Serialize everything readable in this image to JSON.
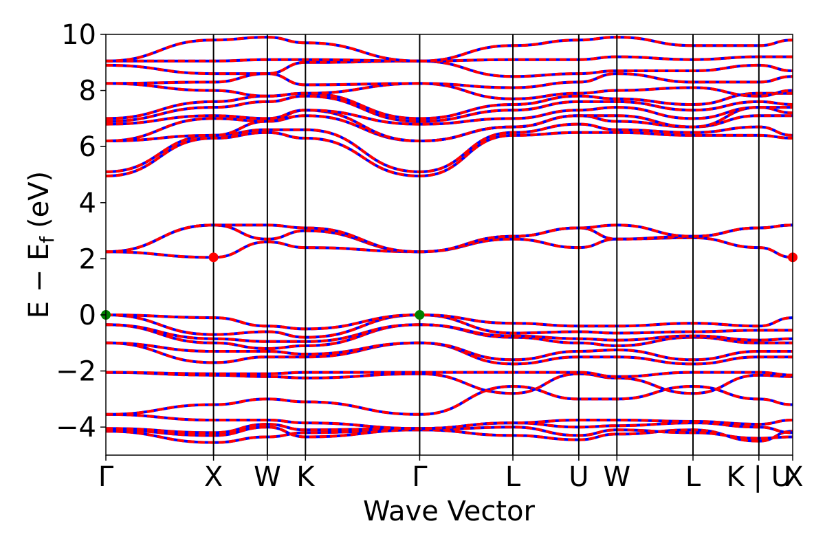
{
  "chart_data": {
    "type": "line",
    "title": "",
    "xlabel": "Wave Vector",
    "ylabel_parts": {
      "base": "E  −  E",
      "sub": "f",
      "unit": "(eV)"
    },
    "ylim": [
      -5,
      10
    ],
    "yticks": [
      -4,
      -2,
      0,
      2,
      4,
      6,
      8,
      10
    ],
    "ytick_labels": [
      "−4",
      "−2",
      "0",
      "2",
      "4",
      "6",
      "8",
      "10"
    ],
    "xlim": [
      0,
      6.38
    ],
    "kpath": [
      {
        "label": "Γ",
        "x": 0.0
      },
      {
        "label": "X",
        "x": 1.0
      },
      {
        "label": "W",
        "x": 1.5
      },
      {
        "label": "K",
        "x": 1.854
      },
      {
        "label": "Γ",
        "x": 2.915
      },
      {
        "label": "L",
        "x": 3.781
      },
      {
        "label": "U",
        "x": 4.393
      },
      {
        "label": "W",
        "x": 4.747
      },
      {
        "label": "L",
        "x": 5.454
      },
      {
        "label": "K | U",
        "x": 6.066
      },
      {
        "label": "X",
        "x": 6.42
      }
    ],
    "grid": false,
    "legend": "none",
    "series_style": {
      "spin_up": "#0000ff",
      "spin_down": "#ff0000",
      "dashed": true
    },
    "points": [
      {
        "role": "vbm",
        "x": 0.0,
        "y": 0.0,
        "color": "#008000"
      },
      {
        "role": "vbm",
        "x": 2.915,
        "y": 0.0,
        "color": "#008000"
      },
      {
        "role": "cbm",
        "x": 1.0,
        "y": 2.05,
        "color": "#ff0000"
      },
      {
        "role": "cbm",
        "x": 6.38,
        "y": 2.05,
        "color": "#ff0000"
      }
    ],
    "bands": [
      {
        "name": "",
        "y": [
          -4.15,
          -4.55,
          -4.35,
          -4.2,
          -4.1,
          -4.3,
          -4.45,
          -4.25,
          -4.1,
          -4.5,
          -4.15
        ]
      },
      {
        "name": "",
        "y": [
          -4.1,
          -4.3,
          -4.0,
          -4.35,
          -4.1,
          -4.0,
          -4.3,
          -4.1,
          -4.2,
          -4.4,
          -4.35
        ]
      },
      {
        "name": "",
        "y": [
          -4.05,
          -4.2,
          -3.9,
          -4.1,
          -4.05,
          -3.85,
          -4.0,
          -3.95,
          -3.85,
          -4.0,
          -4.2
        ]
      },
      {
        "name": "",
        "y": [
          -3.55,
          -3.75,
          -3.75,
          -3.85,
          -4.05,
          -3.85,
          -3.75,
          -3.75,
          -3.8,
          -3.9,
          -3.75
        ]
      },
      {
        "name": "",
        "y": [
          -3.55,
          -3.2,
          -3.0,
          -3.1,
          -3.55,
          -2.55,
          -3.0,
          -3.0,
          -2.55,
          -3.0,
          -3.2
        ]
      },
      {
        "name": "",
        "y": [
          -2.05,
          -2.15,
          -2.2,
          -2.25,
          -2.1,
          -2.8,
          -2.1,
          -2.25,
          -2.8,
          -2.15,
          -2.2
        ]
      },
      {
        "name": "",
        "y": [
          -2.05,
          -2.1,
          -2.1,
          -2.05,
          -2.05,
          -2.05,
          -2.05,
          -2.2,
          -2.05,
          -2.05,
          -2.15
        ]
      },
      {
        "name": "",
        "y": [
          -1.0,
          -1.7,
          -1.5,
          -1.5,
          -1.0,
          -1.75,
          -1.5,
          -1.5,
          -1.75,
          -1.5,
          -1.5
        ]
      },
      {
        "name": "",
        "y": [
          -1.0,
          -1.3,
          -1.3,
          -1.4,
          -1.0,
          -1.6,
          -1.3,
          -1.25,
          -1.6,
          -1.3,
          -1.3
        ]
      },
      {
        "name": "",
        "y": [
          -0.35,
          -1.0,
          -1.2,
          -1.1,
          -0.35,
          -0.8,
          -1.0,
          -1.1,
          -0.8,
          -1.0,
          -1.0
        ]
      },
      {
        "name": "",
        "y": [
          -0.35,
          -0.85,
          -0.95,
          -0.95,
          -0.35,
          -0.75,
          -0.85,
          -0.9,
          -0.75,
          -0.9,
          -0.85
        ]
      },
      {
        "name": "",
        "y": [
          0.0,
          -0.7,
          -0.6,
          -0.8,
          0.0,
          -0.65,
          -0.6,
          -0.65,
          -0.6,
          -0.55,
          -0.55
        ]
      },
      {
        "name": "",
        "y": [
          0.0,
          -0.1,
          -0.4,
          -0.5,
          0.0,
          -0.3,
          -0.4,
          -0.4,
          -0.3,
          -0.4,
          -0.1
        ]
      },
      {
        "name": "",
        "y": [
          2.25,
          2.05,
          2.6,
          2.4,
          2.25,
          2.7,
          2.4,
          2.7,
          2.75,
          2.4,
          2.05
        ]
      },
      {
        "name": "",
        "y": [
          2.25,
          3.2,
          2.7,
          3.0,
          2.25,
          2.8,
          3.1,
          2.7,
          2.8,
          3.1,
          3.2
        ]
      },
      {
        "name": "",
        "y": [
          2.25,
          3.2,
          3.2,
          3.1,
          2.25,
          2.8,
          3.1,
          3.2,
          2.8,
          3.1,
          3.2
        ]
      },
      {
        "name": "",
        "y": [
          4.95,
          6.3,
          6.5,
          6.3,
          4.95,
          6.4,
          6.5,
          6.5,
          6.4,
          6.4,
          6.3
        ]
      },
      {
        "name": "",
        "y": [
          5.1,
          6.4,
          6.6,
          6.6,
          5.1,
          6.5,
          6.8,
          6.6,
          6.5,
          6.7,
          6.4
        ]
      },
      {
        "name": "",
        "y": [
          6.2,
          6.4,
          6.9,
          7.1,
          6.2,
          6.7,
          7.1,
          6.9,
          6.7,
          7.1,
          7.1
        ]
      },
      {
        "name": "",
        "y": [
          6.2,
          7.0,
          6.9,
          7.3,
          6.2,
          6.7,
          7.1,
          7.1,
          6.7,
          7.4,
          7.2
        ]
      },
      {
        "name": "",
        "y": [
          6.8,
          7.1,
          7.0,
          7.3,
          6.8,
          7.0,
          7.3,
          7.4,
          7.0,
          7.4,
          7.4
        ]
      },
      {
        "name": "",
        "y": [
          6.9,
          7.4,
          7.6,
          7.8,
          6.9,
          7.3,
          7.6,
          7.6,
          7.3,
          7.6,
          7.5
        ]
      },
      {
        "name": "",
        "y": [
          7.0,
          7.6,
          7.8,
          7.9,
          7.0,
          7.5,
          7.8,
          7.7,
          7.5,
          7.9,
          7.9
        ]
      },
      {
        "name": "",
        "y": [
          8.25,
          8.0,
          7.8,
          7.9,
          8.25,
          7.7,
          7.9,
          8.0,
          8.1,
          7.8,
          8.0
        ]
      },
      {
        "name": "",
        "y": [
          8.25,
          8.3,
          8.6,
          8.2,
          8.25,
          8.1,
          8.3,
          8.6,
          8.3,
          8.3,
          8.5
        ]
      },
      {
        "name": "",
        "y": [
          8.9,
          8.6,
          8.6,
          9.0,
          9.05,
          8.5,
          8.6,
          8.7,
          8.7,
          8.9,
          8.7
        ]
      },
      {
        "name": "",
        "y": [
          9.05,
          9.05,
          9.1,
          9.1,
          9.05,
          9.1,
          9.1,
          9.2,
          9.1,
          9.2,
          9.2
        ]
      },
      {
        "name": "",
        "y": [
          9.05,
          9.8,
          9.9,
          9.7,
          9.05,
          9.6,
          9.8,
          9.9,
          9.6,
          9.6,
          9.8
        ]
      }
    ]
  }
}
